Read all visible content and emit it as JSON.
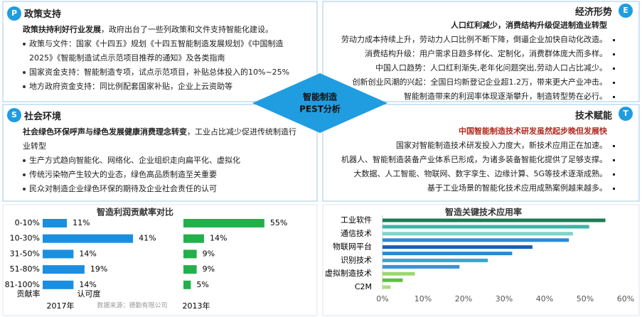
{
  "center": {
    "line1": "智能制造",
    "line2": "PEST分析"
  },
  "quadrants": {
    "p": {
      "badge": "P",
      "title": "政策支持",
      "lead_bold": "政策扶持利好行业发展",
      "lead": "，政府出台了一些列政策和文件支持智能化建设。",
      "items": [
        "政策与文件：国家《十四五》规划《十四五智能制造发展规划》《中国制造2025》《智能制造试点示范项目推荐的通知》及各类指南",
        "国家资金支持：智能制造专项，试点示范项目，补贴总体投入的10%~25%",
        "地方政府资金支持：同比例配套国家补贴，企业上云资助等"
      ]
    },
    "e": {
      "badge": "E",
      "title": "经济形势",
      "lead_bold": "人口红利减少，消费结构升级促进制造业转型",
      "items": [
        "劳动力成本持续上升，劳动力人口比例不断下降，倒逼企业加快自动化改造。",
        "消费结构升级：用户需求日趋多样化、定制化，消费群体庞大而多样。",
        "中国人口趋势：人口红利渐失,老年化问题突出,劳动人口占比减少。",
        "创新创业风潮的兴起：全国日均新登记企业超1.2万，带来更大产业冲击。",
        "智能制造带来的利润率体现逐渐攀升，制造转型势在必行。"
      ]
    },
    "s": {
      "badge": "S",
      "title": "社会环境",
      "lead_bold": "社会绿色环保呼声与绿色发展健康消费理念转变",
      "lead": "，工业占比减少促进传统制造行业转型",
      "items": [
        "生产方式趋向智能化、网络化、企业组织走向扁平化、虚拟化",
        "传统污染物产生较大的业态，绿色高品质制造至关重要",
        "民众对制造企业绿色环保的期待及企业社会责任的认可"
      ]
    },
    "t": {
      "badge": "T",
      "title": "技术赋能",
      "lead_bold": "中国智能制造技术研发虽然起步晚但发展快",
      "items": [
        "国家对智能制造技术研发投入力度大，新技术应用正在加速。",
        "机器人、智能制造装备产业体系已形成，为诸多装备智能化提供了足够支撑。",
        "大数据、人工智能、物联网、数字孪生、边缘计算、5G等技术逐渐成熟。",
        "基于工业场景的智能化技术应用成熟案例越来越多。"
      ]
    }
  },
  "chart_data": [
    {
      "type": "pairbar",
      "title": "智造利润贡献率对比",
      "categories": [
        "0-10%",
        "10-30%",
        "31-50%",
        "51-80%",
        "81-100%"
      ],
      "series": [
        {
          "name": "2017年",
          "color": "#1a8fe0",
          "values": [
            11,
            41,
            14,
            19,
            14
          ],
          "value_labels": [
            "11%",
            "41%",
            "14%",
            "19%",
            "14%"
          ]
        },
        {
          "name": "2013年",
          "color": "#22b04a",
          "values": [
            55,
            14,
            9,
            9,
            5
          ],
          "value_labels": [
            "55%",
            "14%",
            "9%",
            "9%",
            "5%"
          ]
        }
      ],
      "category_axis_label": "贡献率",
      "value_axis_label": "认可度",
      "source": "数据来源：德勤有限公司"
    },
    {
      "type": "hbar",
      "title": "智造关键技术应用率",
      "categories": [
        "工业软件",
        "通信技术",
        "物联网平台",
        "识别技术",
        "虚拟制造技术",
        "C2M"
      ],
      "series": [
        {
          "values": [
            55,
            47,
            37,
            26,
            8,
            2
          ],
          "colors": [
            "#1e7a52",
            "#7fd3c8",
            "#1660b8",
            "#3aa8c8",
            "#9ad870",
            "#a8e080"
          ]
        },
        {
          "values": [
            51,
            46,
            32,
            19,
            5,
            null
          ],
          "colors": [
            "#3bb5a8",
            "#2a8ad8",
            "#2a88d0",
            "#3a90d8",
            "#5cc040",
            null
          ]
        }
      ],
      "xlim": [
        0,
        60
      ],
      "xticks": [
        {
          "value": 0,
          "label": "0%"
        },
        {
          "value": 10,
          "label": "10%"
        },
        {
          "value": 20,
          "label": "20%"
        },
        {
          "value": 30,
          "label": "30%"
        },
        {
          "value": 40,
          "label": "40%"
        },
        {
          "value": 50,
          "label": "50%"
        },
        {
          "value": 60,
          "label": "60%"
        }
      ]
    }
  ]
}
